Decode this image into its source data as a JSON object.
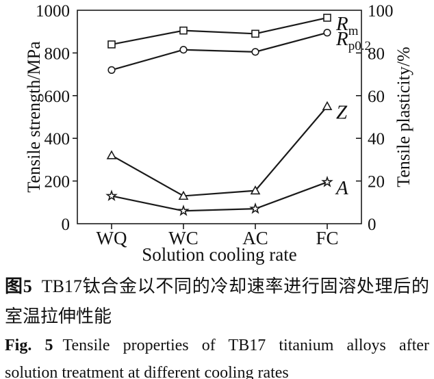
{
  "chart_data": {
    "type": "line",
    "title": "",
    "categories": [
      "WQ",
      "WC",
      "AC",
      "FC"
    ],
    "xlabel": "Solution cooling rate",
    "left_axis": {
      "label": "Tensile strength/MPa",
      "lim": [
        0,
        1000
      ],
      "ticks": [
        0,
        200,
        400,
        600,
        800,
        1000
      ]
    },
    "right_axis": {
      "label": "Tensile plasticity/%",
      "lim": [
        0,
        100
      ],
      "ticks": [
        0,
        20,
        40,
        60,
        80,
        100
      ]
    },
    "grid": false,
    "legend": "italic labels at right ends of lines",
    "series": [
      {
        "name": "Rm",
        "label_main": "R",
        "label_sub": "m",
        "marker": "square",
        "axis": "left",
        "unit": "MPa",
        "values": [
          840,
          905,
          890,
          965
        ]
      },
      {
        "name": "Rp02",
        "label_main": "R",
        "label_sub": "p0.2",
        "marker": "circle",
        "axis": "left",
        "unit": "MPa",
        "values": [
          720,
          815,
          805,
          895
        ]
      },
      {
        "name": "Z",
        "label_main": "Z",
        "label_sub": "",
        "marker": "triangle",
        "axis": "right",
        "unit": "%",
        "values": [
          32,
          13,
          15.5,
          55
        ]
      },
      {
        "name": "A",
        "label_main": "A",
        "label_sub": "",
        "marker": "star",
        "axis": "right",
        "unit": "%",
        "values": [
          13,
          6,
          7,
          19.5
        ]
      }
    ],
    "colors": {
      "line": "#1a1a1a",
      "text": "#111111",
      "background": "#ffffff"
    }
  },
  "caption": {
    "cn_label": "图5",
    "cn_line1": "TB17钛合金以不同的冷却速率进行固溶处理后的",
    "cn_line2": "室温拉伸性能",
    "en_label": "Fig. 5",
    "en_line1": "Tensile properties of TB17 titanium alloys after",
    "en_line2": "solution treatment at different cooling rates"
  }
}
